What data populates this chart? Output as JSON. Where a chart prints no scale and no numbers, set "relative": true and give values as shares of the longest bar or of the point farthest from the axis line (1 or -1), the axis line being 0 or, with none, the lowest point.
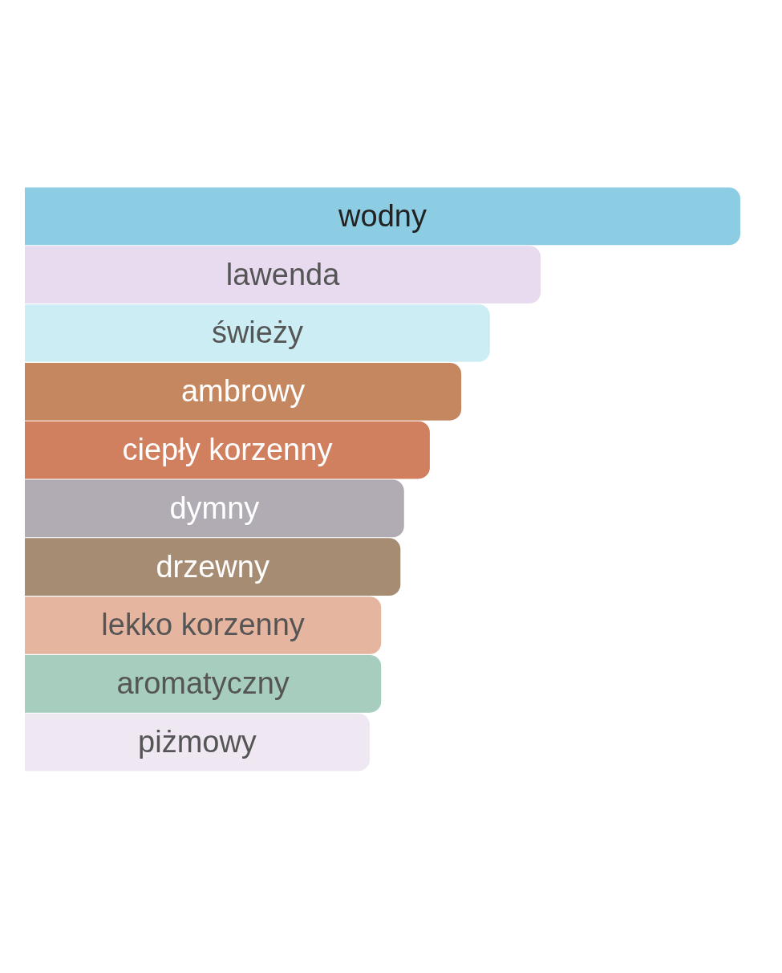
{
  "chart_data": {
    "type": "bar",
    "orientation": "horizontal",
    "relative": true,
    "categories": [
      "wodny",
      "lawenda",
      "świeży",
      "ambrowy",
      "ciepły korzenny",
      "dymny",
      "drzewny",
      "lekko korzenny",
      "aromatyczny",
      "piżmowy"
    ],
    "values": [
      1,
      0.721,
      0.65,
      0.61,
      0.566,
      0.53,
      0.525,
      0.498,
      0.498,
      0.482
    ],
    "colors": [
      "#8ccde3",
      "#e8dbf0",
      "#cbedf3",
      "#c48760",
      "#d07f5f",
      "#b1abb3",
      "#a68c72",
      "#e5b5a0",
      "#a6cdbd",
      "#efe7f1"
    ]
  }
}
